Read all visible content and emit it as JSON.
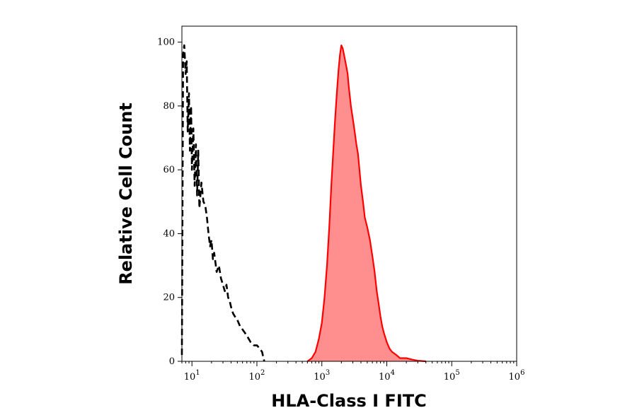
{
  "chart_data": {
    "type": "area",
    "xlabel": "HLA-Class I FITC",
    "ylabel": "Relative Cell Count",
    "x_scale": "log",
    "xlim": [
      7,
      1000000
    ],
    "ylim": [
      0,
      105
    ],
    "grid": false,
    "x_ticks": [
      {
        "value": 10,
        "base": "10",
        "exp": "1"
      },
      {
        "value": 100,
        "base": "10",
        "exp": "2"
      },
      {
        "value": 1000,
        "base": "10",
        "exp": "3"
      },
      {
        "value": 10000,
        "base": "10",
        "exp": "4"
      },
      {
        "value": 100000,
        "base": "10",
        "exp": "5"
      },
      {
        "value": 1000000,
        "base": "10",
        "exp": "6"
      }
    ],
    "y_ticks": [
      {
        "value": 0,
        "label": "0"
      },
      {
        "value": 20,
        "label": "20"
      },
      {
        "value": 40,
        "label": "40"
      },
      {
        "value": 60,
        "label": "60"
      },
      {
        "value": 80,
        "label": "80"
      },
      {
        "value": 100,
        "label": "100"
      }
    ],
    "series": [
      {
        "style": "dashed",
        "color": "#000000",
        "fill": "none",
        "x": [
          7,
          7.3,
          7.6,
          8,
          8.3,
          8.6,
          9,
          9.3,
          9.7,
          10,
          10.5,
          11,
          11.5,
          12,
          12.5,
          13,
          14,
          15,
          16,
          17,
          18,
          19,
          20,
          21,
          22,
          24,
          26,
          28,
          30,
          32,
          34,
          36,
          38,
          40,
          43,
          46,
          50,
          55,
          60,
          65,
          70,
          75,
          80,
          90,
          100,
          110,
          120,
          130
        ],
        "y": [
          2,
          96,
          99,
          90,
          94,
          72,
          84,
          66,
          80,
          60,
          73,
          55,
          68,
          52,
          66,
          48,
          56,
          50,
          49,
          45,
          40,
          36,
          38,
          32,
          34,
          28,
          30,
          26,
          24,
          22,
          24,
          20,
          19,
          17,
          15,
          14,
          13,
          11,
          10,
          9,
          8,
          7,
          6,
          5,
          5,
          4,
          3,
          0
        ]
      },
      {
        "style": "solid",
        "color": "#ff0000",
        "fill": "#ff8f8f",
        "x": [
          600,
          700,
          800,
          900,
          1000,
          1100,
          1200,
          1300,
          1400,
          1500,
          1600,
          1700,
          1800,
          1900,
          2000,
          2100,
          2200,
          2300,
          2400,
          2500,
          2600,
          2700,
          2800,
          3000,
          3200,
          3400,
          3600,
          3800,
          4000,
          4300,
          4600,
          5000,
          5500,
          6000,
          6500,
          7000,
          7500,
          8000,
          8500,
          9000,
          10000,
          11000,
          12000,
          14000,
          16000,
          20000,
          25000,
          30000,
          40000
        ],
        "y": [
          0,
          1,
          3,
          7,
          12,
          20,
          30,
          42,
          55,
          66,
          76,
          84,
          91,
          96,
          99,
          98,
          96,
          94,
          92,
          90,
          86,
          83,
          80,
          76,
          72,
          68,
          65,
          60,
          55,
          50,
          45,
          42,
          38,
          33,
          28,
          22,
          18,
          14,
          11,
          9,
          6,
          4,
          3,
          2,
          1,
          1,
          0.5,
          0.2,
          0
        ]
      }
    ]
  }
}
